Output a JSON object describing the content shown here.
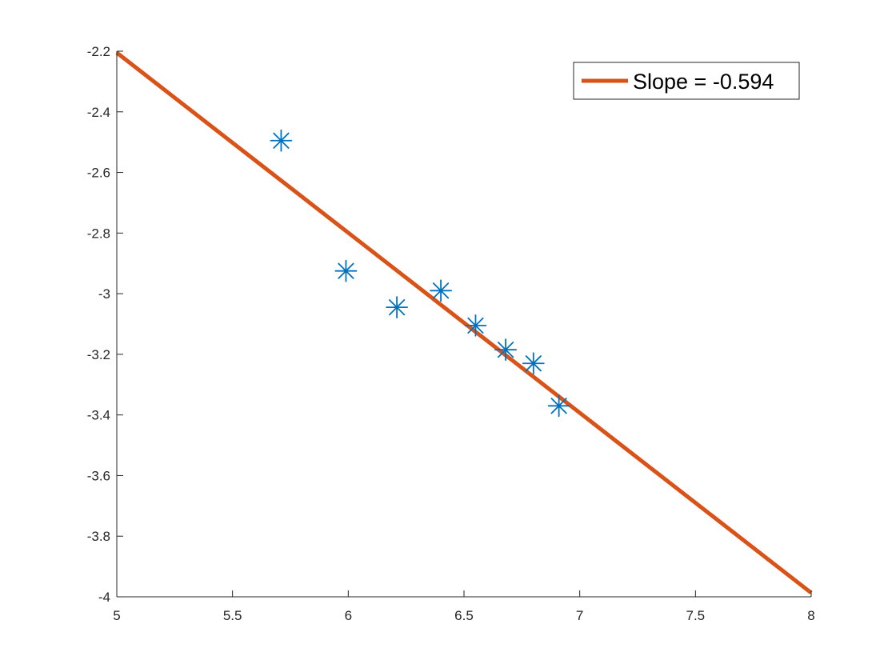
{
  "chart_data": {
    "type": "scatter",
    "title": "",
    "xlabel": "",
    "ylabel": "",
    "xlim": [
      5,
      8
    ],
    "ylim": [
      -4,
      -2.2
    ],
    "xticks": [
      5,
      5.5,
      6,
      6.5,
      7,
      7.5,
      8
    ],
    "xtick_labels": [
      "5",
      "5.5",
      "6",
      "6.5",
      "7",
      "7.5",
      "8"
    ],
    "yticks": [
      -2.2,
      -2.4,
      -2.6,
      -2.8,
      -3,
      -3.2,
      -3.4,
      -3.6,
      -3.8,
      -4
    ],
    "ytick_labels": [
      "-2.2",
      "-2.4",
      "-2.6",
      "-2.8",
      "-3",
      "-3.2",
      "-3.4",
      "-3.6",
      "-3.8",
      "-4"
    ],
    "grid": false,
    "legend_position": "top-right",
    "series": [
      {
        "type": "scatter",
        "marker": "asterisk",
        "color": "#0072BD",
        "x": [
          5.71,
          5.99,
          6.21,
          6.4,
          6.55,
          6.68,
          6.8,
          6.91
        ],
        "y": [
          -2.495,
          -2.925,
          -3.045,
          -2.99,
          -3.105,
          -3.185,
          -3.23,
          -3.37
        ]
      },
      {
        "type": "line",
        "name": "Slope = -0.594",
        "color": "#D95319",
        "x": [
          5,
          8
        ],
        "y": [
          -2.205,
          -3.987
        ]
      }
    ]
  }
}
